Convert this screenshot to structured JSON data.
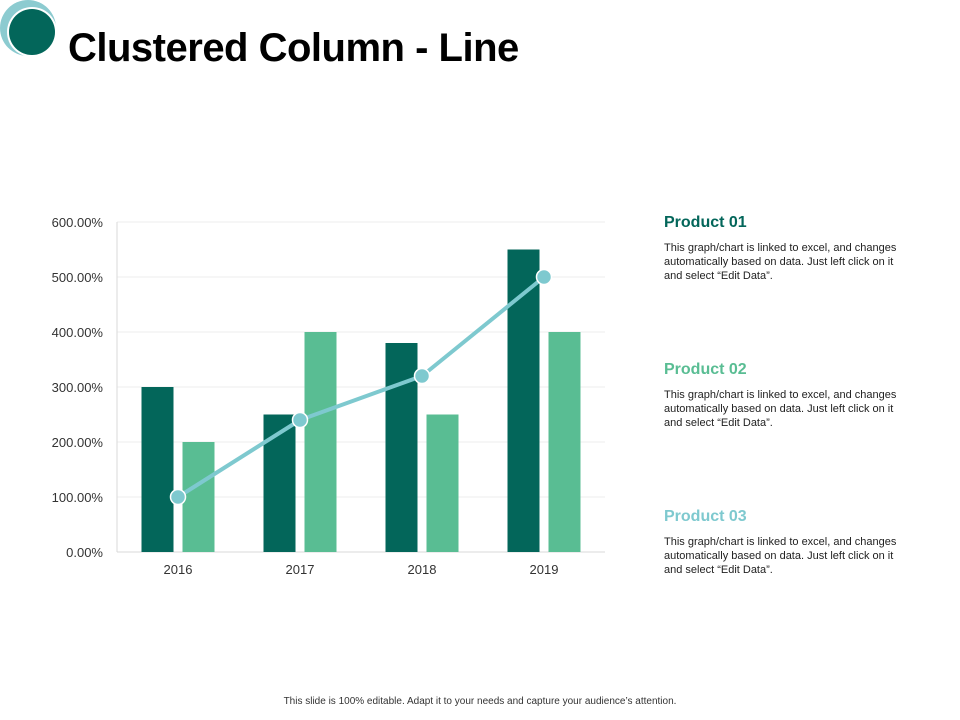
{
  "title": "Clustered Column - Line",
  "colors": {
    "dark": "#03665a",
    "light": "#59bd93",
    "line": "#7ec9cf",
    "logo_outer": "#8ccbd0",
    "logo_inner": "#03665a"
  },
  "chart_data": {
    "type": "bar",
    "categories": [
      "2016",
      "2017",
      "2018",
      "2019"
    ],
    "series": [
      {
        "kind": "bar",
        "color": "#03665a",
        "values": [
          3.0,
          2.5,
          3.8,
          5.5
        ]
      },
      {
        "kind": "bar",
        "color": "#59bd93",
        "values": [
          2.0,
          4.0,
          2.5,
          4.0
        ]
      },
      {
        "kind": "line",
        "color": "#7ec9cf",
        "values": [
          1.0,
          2.4,
          3.2,
          5.0
        ]
      }
    ],
    "ylim": [
      0,
      6
    ],
    "yticks": [
      "0.00%",
      "100.00%",
      "200.00%",
      "300.00%",
      "400.00%",
      "500.00%",
      "600.00%"
    ],
    "grid": true,
    "legend": "none"
  },
  "products": [
    {
      "name": "Product 01",
      "color": "#03665a",
      "desc": "This graph/chart is linked to excel, and changes automatically based on data. Just left click on it and select “Edit Data”."
    },
    {
      "name": "Product 02",
      "color": "#59bd93",
      "desc": "This graph/chart is linked to excel, and changes automatically based on data. Just left click on it and select “Edit Data”."
    },
    {
      "name": "Product 03",
      "color": "#7ec9cf",
      "desc": "This graph/chart is linked to excel, and changes automatically based on data. Just left click on it and select “Edit Data”."
    }
  ],
  "footer": "This slide is 100% editable. Adapt it to your needs and capture your audience’s attention."
}
